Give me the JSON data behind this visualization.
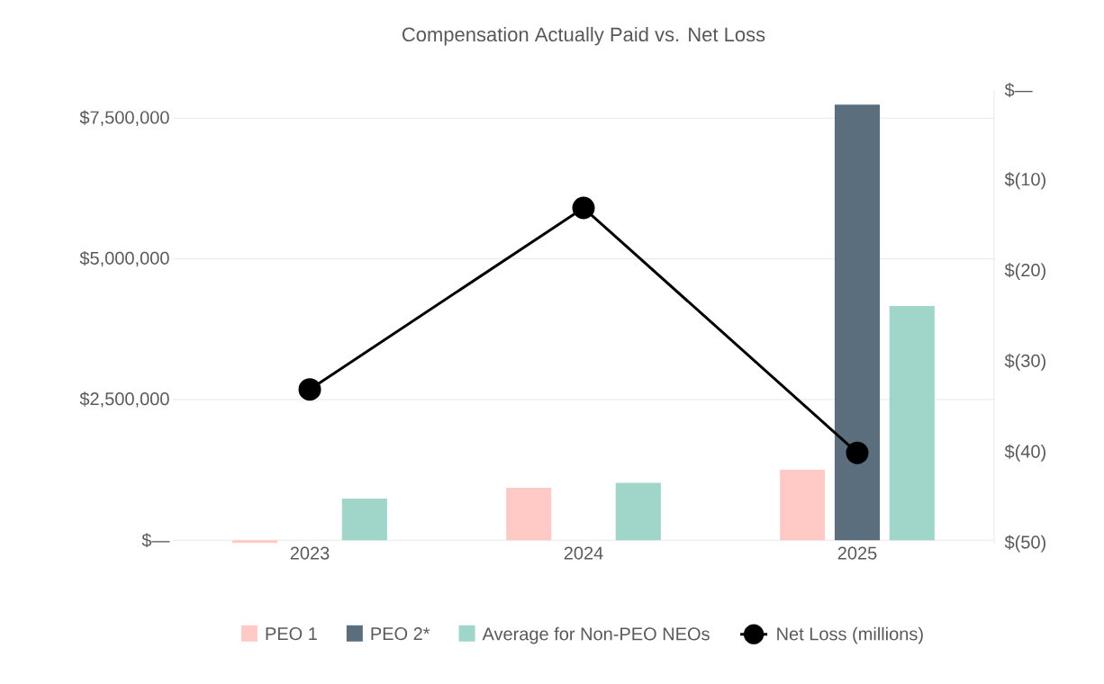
{
  "chart_data": {
    "type": "bar",
    "title": "Compensation Actually Paid vs. Net Loss",
    "categories": [
      "2023",
      "2024",
      "2025"
    ],
    "series": [
      {
        "name": "PEO 1",
        "color": "#ffc9c6",
        "values": [
          -50000,
          930000,
          1250000
        ]
      },
      {
        "name": "PEO 2*",
        "color": "#5a6e7d",
        "values": [
          null,
          null,
          7740000
        ]
      },
      {
        "name": "Average for Non-PEO NEOs",
        "color": "#a0d5ca",
        "values": [
          740000,
          1020000,
          4160000
        ]
      },
      {
        "name": "Net Loss (millions)",
        "color": "#000000",
        "type": "line",
        "axis": "y2",
        "marker": "circle",
        "values": [
          -33,
          -13,
          -40
        ]
      }
    ],
    "ylim": [
      -60000,
      8000000
    ],
    "yticks": [
      {
        "value": 0,
        "label": "$—"
      },
      {
        "value": 2500000,
        "label": "$2,500,000"
      },
      {
        "value": 5000000,
        "label": "$5,000,000"
      },
      {
        "value": 7500000,
        "label": "$7,500,000"
      }
    ],
    "y2lim": [
      -50,
      0
    ],
    "y2ticks": [
      {
        "value": -50,
        "label": "$(50)"
      },
      {
        "value": -40,
        "label": "$(40)"
      },
      {
        "value": -30,
        "label": "$(30)"
      },
      {
        "value": -20,
        "label": "$(20)"
      },
      {
        "value": -10,
        "label": "$(10)"
      },
      {
        "value": 0,
        "label": "$—"
      }
    ],
    "grid": "y",
    "legend": "bottom"
  }
}
